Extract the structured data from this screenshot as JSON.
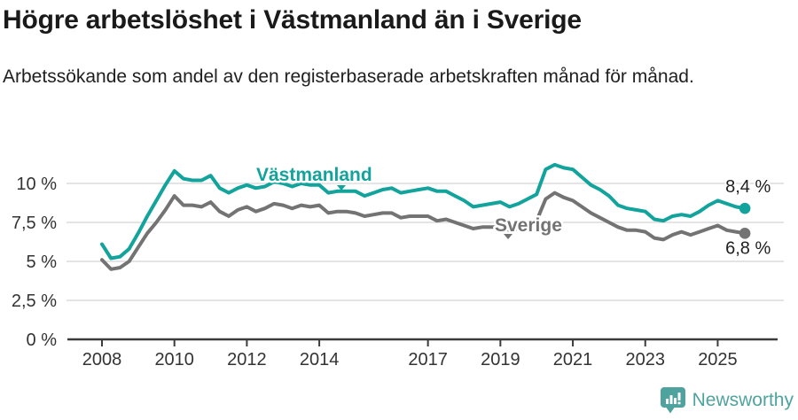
{
  "header": {
    "title": "Högre arbetslöshet i Västmanland än i Sverige",
    "subtitle": "Arbetssökande som andel av den registerbaserade arbetskraften månad för månad."
  },
  "footer": {
    "brand": "Newsworthy",
    "logo_icon": "bar-chart-badge-icon"
  },
  "colors": {
    "vastmanland": "#12a39c",
    "sverige": "#737373",
    "grid": "#dcdcdc",
    "axis": "#3c3c3c",
    "tick_text": "#333333",
    "annotation_text": "#1f1f1f",
    "logo": "#4fa39e",
    "background": "#ffffff"
  },
  "chart_data": {
    "type": "line",
    "title": "Högre arbetslöshet i Västmanland än i Sverige",
    "xlabel": "",
    "ylabel": "",
    "x_unit": "decimal_year",
    "xlim": [
      2008,
      2025.75
    ],
    "ylim": [
      0,
      11.5
    ],
    "grid": true,
    "legend_position": "inline-labels",
    "yticks": [
      {
        "value": 0,
        "label": "0 %"
      },
      {
        "value": 2.5,
        "label": "2,5 %"
      },
      {
        "value": 5,
        "label": "5 %"
      },
      {
        "value": 7.5,
        "label": "7,5 %"
      },
      {
        "value": 10,
        "label": "10 %"
      }
    ],
    "xticks": [
      {
        "value": 2008,
        "label": "2008"
      },
      {
        "value": 2010,
        "label": "2010"
      },
      {
        "value": 2012,
        "label": "2012"
      },
      {
        "value": 2014,
        "label": "2014"
      },
      {
        "value": 2017,
        "label": "2017"
      },
      {
        "value": 2019,
        "label": "2019"
      },
      {
        "value": 2021,
        "label": "2021"
      },
      {
        "value": 2023,
        "label": "2023"
      },
      {
        "value": 2025,
        "label": "2025"
      }
    ],
    "x": [
      2008,
      2008.25,
      2008.5,
      2008.75,
      2009,
      2009.25,
      2009.5,
      2009.75,
      2010,
      2010.25,
      2010.5,
      2010.75,
      2011,
      2011.25,
      2011.5,
      2011.75,
      2012,
      2012.25,
      2012.5,
      2012.75,
      2013,
      2013.25,
      2013.5,
      2013.75,
      2014,
      2014.25,
      2014.5,
      2014.75,
      2015,
      2015.25,
      2015.5,
      2015.75,
      2016,
      2016.25,
      2016.5,
      2016.75,
      2017,
      2017.25,
      2017.5,
      2017.75,
      2018,
      2018.25,
      2018.5,
      2018.75,
      2019,
      2019.25,
      2019.5,
      2019.75,
      2020,
      2020.25,
      2020.5,
      2020.75,
      2021,
      2021.25,
      2021.5,
      2021.75,
      2022,
      2022.25,
      2022.5,
      2022.75,
      2023,
      2023.25,
      2023.5,
      2023.75,
      2024,
      2024.25,
      2024.5,
      2024.75,
      2025,
      2025.25,
      2025.5,
      2025.75
    ],
    "series": [
      {
        "name": "Västmanland",
        "color": "#12a39c",
        "end_label": "8,4 %",
        "end_value": 8.4,
        "values": [
          6.1,
          5.2,
          5.3,
          5.8,
          6.8,
          7.9,
          8.9,
          9.9,
          10.8,
          10.3,
          10.2,
          10.2,
          10.5,
          9.7,
          9.4,
          9.7,
          9.9,
          9.7,
          9.8,
          10.1,
          10.0,
          9.8,
          10.0,
          9.9,
          9.9,
          9.4,
          9.5,
          9.5,
          9.5,
          9.2,
          9.4,
          9.6,
          9.7,
          9.4,
          9.5,
          9.6,
          9.7,
          9.5,
          9.5,
          9.2,
          8.9,
          8.5,
          8.6,
          8.7,
          8.8,
          8.5,
          8.7,
          9.0,
          9.3,
          10.9,
          11.2,
          11.0,
          10.9,
          10.4,
          9.9,
          9.6,
          9.2,
          8.6,
          8.4,
          8.3,
          8.2,
          7.7,
          7.6,
          7.9,
          8.0,
          7.9,
          8.2,
          8.6,
          8.9,
          8.7,
          8.5,
          8.4
        ]
      },
      {
        "name": "Sverige",
        "color": "#737373",
        "end_label": "6,8 %",
        "end_value": 6.8,
        "values": [
          5.1,
          4.5,
          4.6,
          5.0,
          5.9,
          6.8,
          7.5,
          8.3,
          9.2,
          8.6,
          8.6,
          8.5,
          8.8,
          8.2,
          7.9,
          8.3,
          8.5,
          8.2,
          8.4,
          8.7,
          8.6,
          8.4,
          8.6,
          8.5,
          8.6,
          8.1,
          8.2,
          8.2,
          8.1,
          7.9,
          8.0,
          8.1,
          8.1,
          7.8,
          7.9,
          7.9,
          7.9,
          7.6,
          7.7,
          7.5,
          7.3,
          7.1,
          7.2,
          7.2,
          7.2,
          7.0,
          7.1,
          7.4,
          7.6,
          9.0,
          9.4,
          9.1,
          8.9,
          8.5,
          8.1,
          7.8,
          7.5,
          7.2,
          7.0,
          7.0,
          6.9,
          6.5,
          6.4,
          6.7,
          6.9,
          6.7,
          6.9,
          7.1,
          7.3,
          7.0,
          6.9,
          6.8
        ]
      }
    ]
  }
}
